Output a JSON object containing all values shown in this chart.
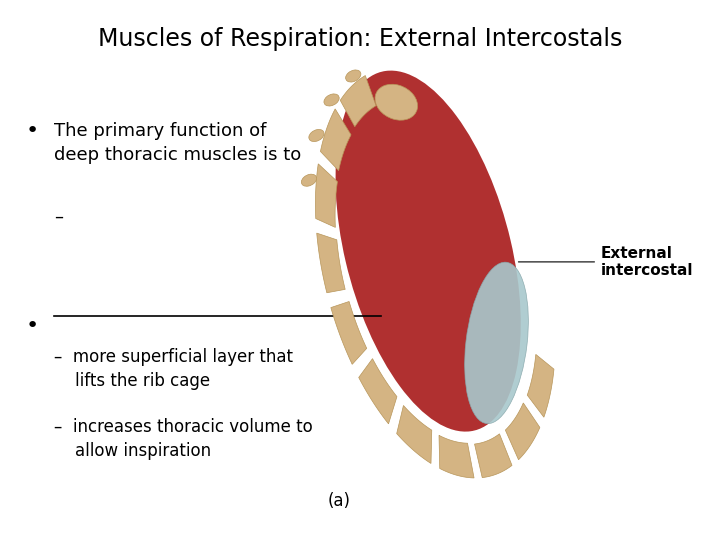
{
  "title": "Muscles of Respiration: External Intercostals",
  "title_fontsize": 17,
  "background_color": "#ffffff",
  "text_color": "#000000",
  "bullet1_text": "The primary function of\ndeep thoracic muscles is to",
  "dash1_text": "–",
  "sub1_text": "–  more superficial layer that\n    lifts the rib cage",
  "sub2_text": "–  increases thoracic volume to\n    allow inspiration",
  "label_a_text": "(a)",
  "annotation_text": "External\nintercostal",
  "body_fontsize": 13,
  "sub_fontsize": 12,
  "annotation_fontsize": 11,
  "bone_color": "#D4B483",
  "bone_edge_color": "#B8965A",
  "muscle_color": "#B03030",
  "cartilage_color": "#A8C8CC",
  "cartilage_edge": "#88A8AC"
}
